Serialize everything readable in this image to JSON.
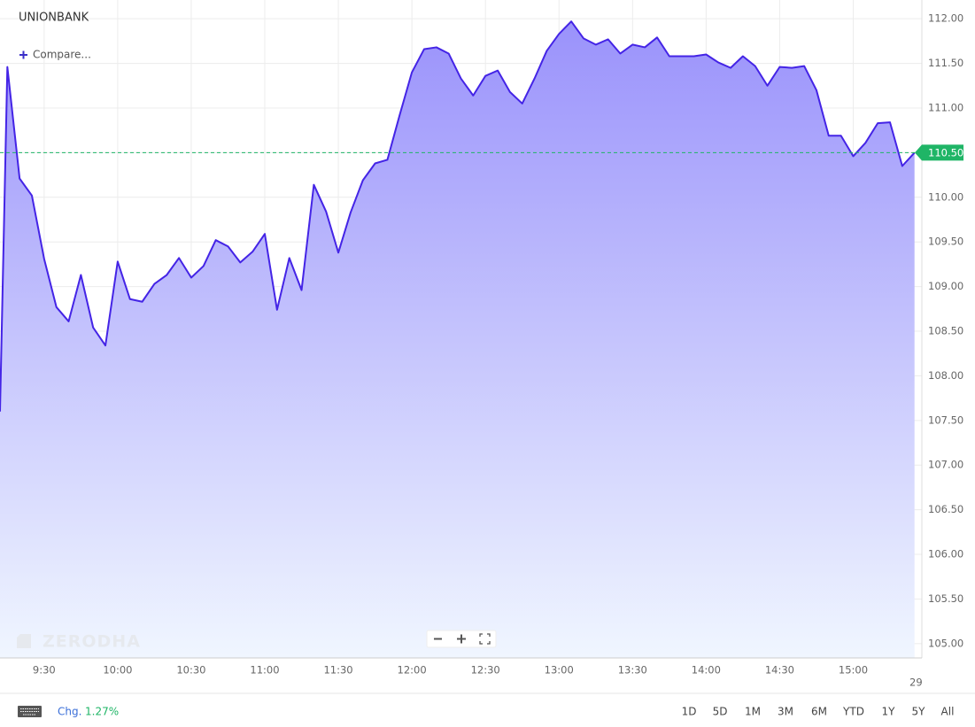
{
  "chart_data": {
    "type": "area",
    "title": "UNIONBANK",
    "x": [
      "9:12",
      "9:15",
      "9:20",
      "9:25",
      "9:30",
      "9:35",
      "9:40",
      "9:45",
      "9:50",
      "9:55",
      "10:00",
      "10:05",
      "10:10",
      "10:15",
      "10:20",
      "10:25",
      "10:30",
      "10:35",
      "10:40",
      "10:45",
      "10:50",
      "10:55",
      "11:00",
      "11:05",
      "11:10",
      "11:15",
      "11:20",
      "11:25",
      "11:30",
      "11:35",
      "11:40",
      "11:45",
      "11:50",
      "11:55",
      "12:00",
      "12:05",
      "12:10",
      "12:15",
      "12:20",
      "12:25",
      "12:30",
      "12:35",
      "12:40",
      "12:45",
      "12:50",
      "12:55",
      "13:00",
      "13:05",
      "13:10",
      "13:15",
      "13:20",
      "13:25",
      "13:30",
      "13:35",
      "13:40",
      "13:45",
      "13:50",
      "13:55",
      "14:00",
      "14:05",
      "14:10",
      "14:15",
      "14:20",
      "14:25",
      "14:30",
      "14:35",
      "14:40",
      "14:45",
      "14:50",
      "14:55",
      "15:00",
      "15:05",
      "15:10",
      "15:15",
      "15:20",
      "15:25"
    ],
    "values": [
      107.6,
      111.46,
      110.21,
      110.02,
      109.31,
      108.77,
      108.61,
      109.13,
      108.54,
      108.34,
      109.28,
      108.86,
      108.83,
      109.03,
      109.13,
      109.32,
      109.1,
      109.23,
      109.52,
      109.45,
      109.27,
      109.39,
      109.59,
      108.74,
      109.32,
      108.96,
      110.14,
      109.84,
      109.38,
      109.83,
      110.19,
      110.38,
      110.42,
      110.92,
      111.4,
      111.66,
      111.68,
      111.61,
      111.33,
      111.14,
      111.36,
      111.42,
      111.18,
      111.05,
      111.33,
      111.64,
      111.83,
      111.97,
      111.78,
      111.71,
      111.77,
      111.61,
      111.71,
      111.68,
      111.79,
      111.58,
      111.58,
      111.58,
      111.6,
      111.51,
      111.45,
      111.58,
      111.47,
      111.25,
      111.46,
      111.45,
      111.47,
      111.2,
      110.69,
      110.69,
      110.46,
      110.61,
      110.83,
      110.84,
      110.35,
      110.5
    ],
    "color": "#4424e6",
    "area_gradient": [
      "#9a92fb",
      "#f0f6ff"
    ],
    "xlim": [
      "9:12",
      "15:28"
    ],
    "xticks": [
      "9:30",
      "10:00",
      "10:30",
      "11:00",
      "11:30",
      "12:00",
      "12:30",
      "13:00",
      "13:30",
      "14:00",
      "14:30",
      "15:00"
    ],
    "ylim": [
      104.84,
      112.21
    ],
    "yticks": [
      {
        "value": 105,
        "label": "105.00"
      },
      {
        "value": 105.5,
        "label": "105.50"
      },
      {
        "value": 106,
        "label": "106.00"
      },
      {
        "value": 106.5,
        "label": "106.50"
      },
      {
        "value": 107,
        "label": "107.00"
      },
      {
        "value": 107.5,
        "label": "107.50"
      },
      {
        "value": 108,
        "label": "108.00"
      },
      {
        "value": 108.5,
        "label": "108.50"
      },
      {
        "value": 109,
        "label": "109.00"
      },
      {
        "value": 109.5,
        "label": "109.50"
      },
      {
        "value": 110,
        "label": "110.00"
      },
      {
        "value": 110.5,
        "label": "110.50"
      },
      {
        "value": 111,
        "label": "111.00"
      },
      {
        "value": 111.5,
        "label": "111.50"
      },
      {
        "value": 112,
        "label": "112.00"
      }
    ],
    "last_price": {
      "value": 110.5,
      "label": "110.50",
      "color": "#1fb566"
    },
    "grid": true,
    "date_label": "29"
  },
  "ui": {
    "compare": "Compare...",
    "watermark": "ZERODHA",
    "change_label": "Chg.",
    "change_value": "1.27%",
    "ranges": [
      "1D",
      "5D",
      "1M",
      "3M",
      "6M",
      "YTD",
      "1Y",
      "5Y",
      "All"
    ]
  }
}
